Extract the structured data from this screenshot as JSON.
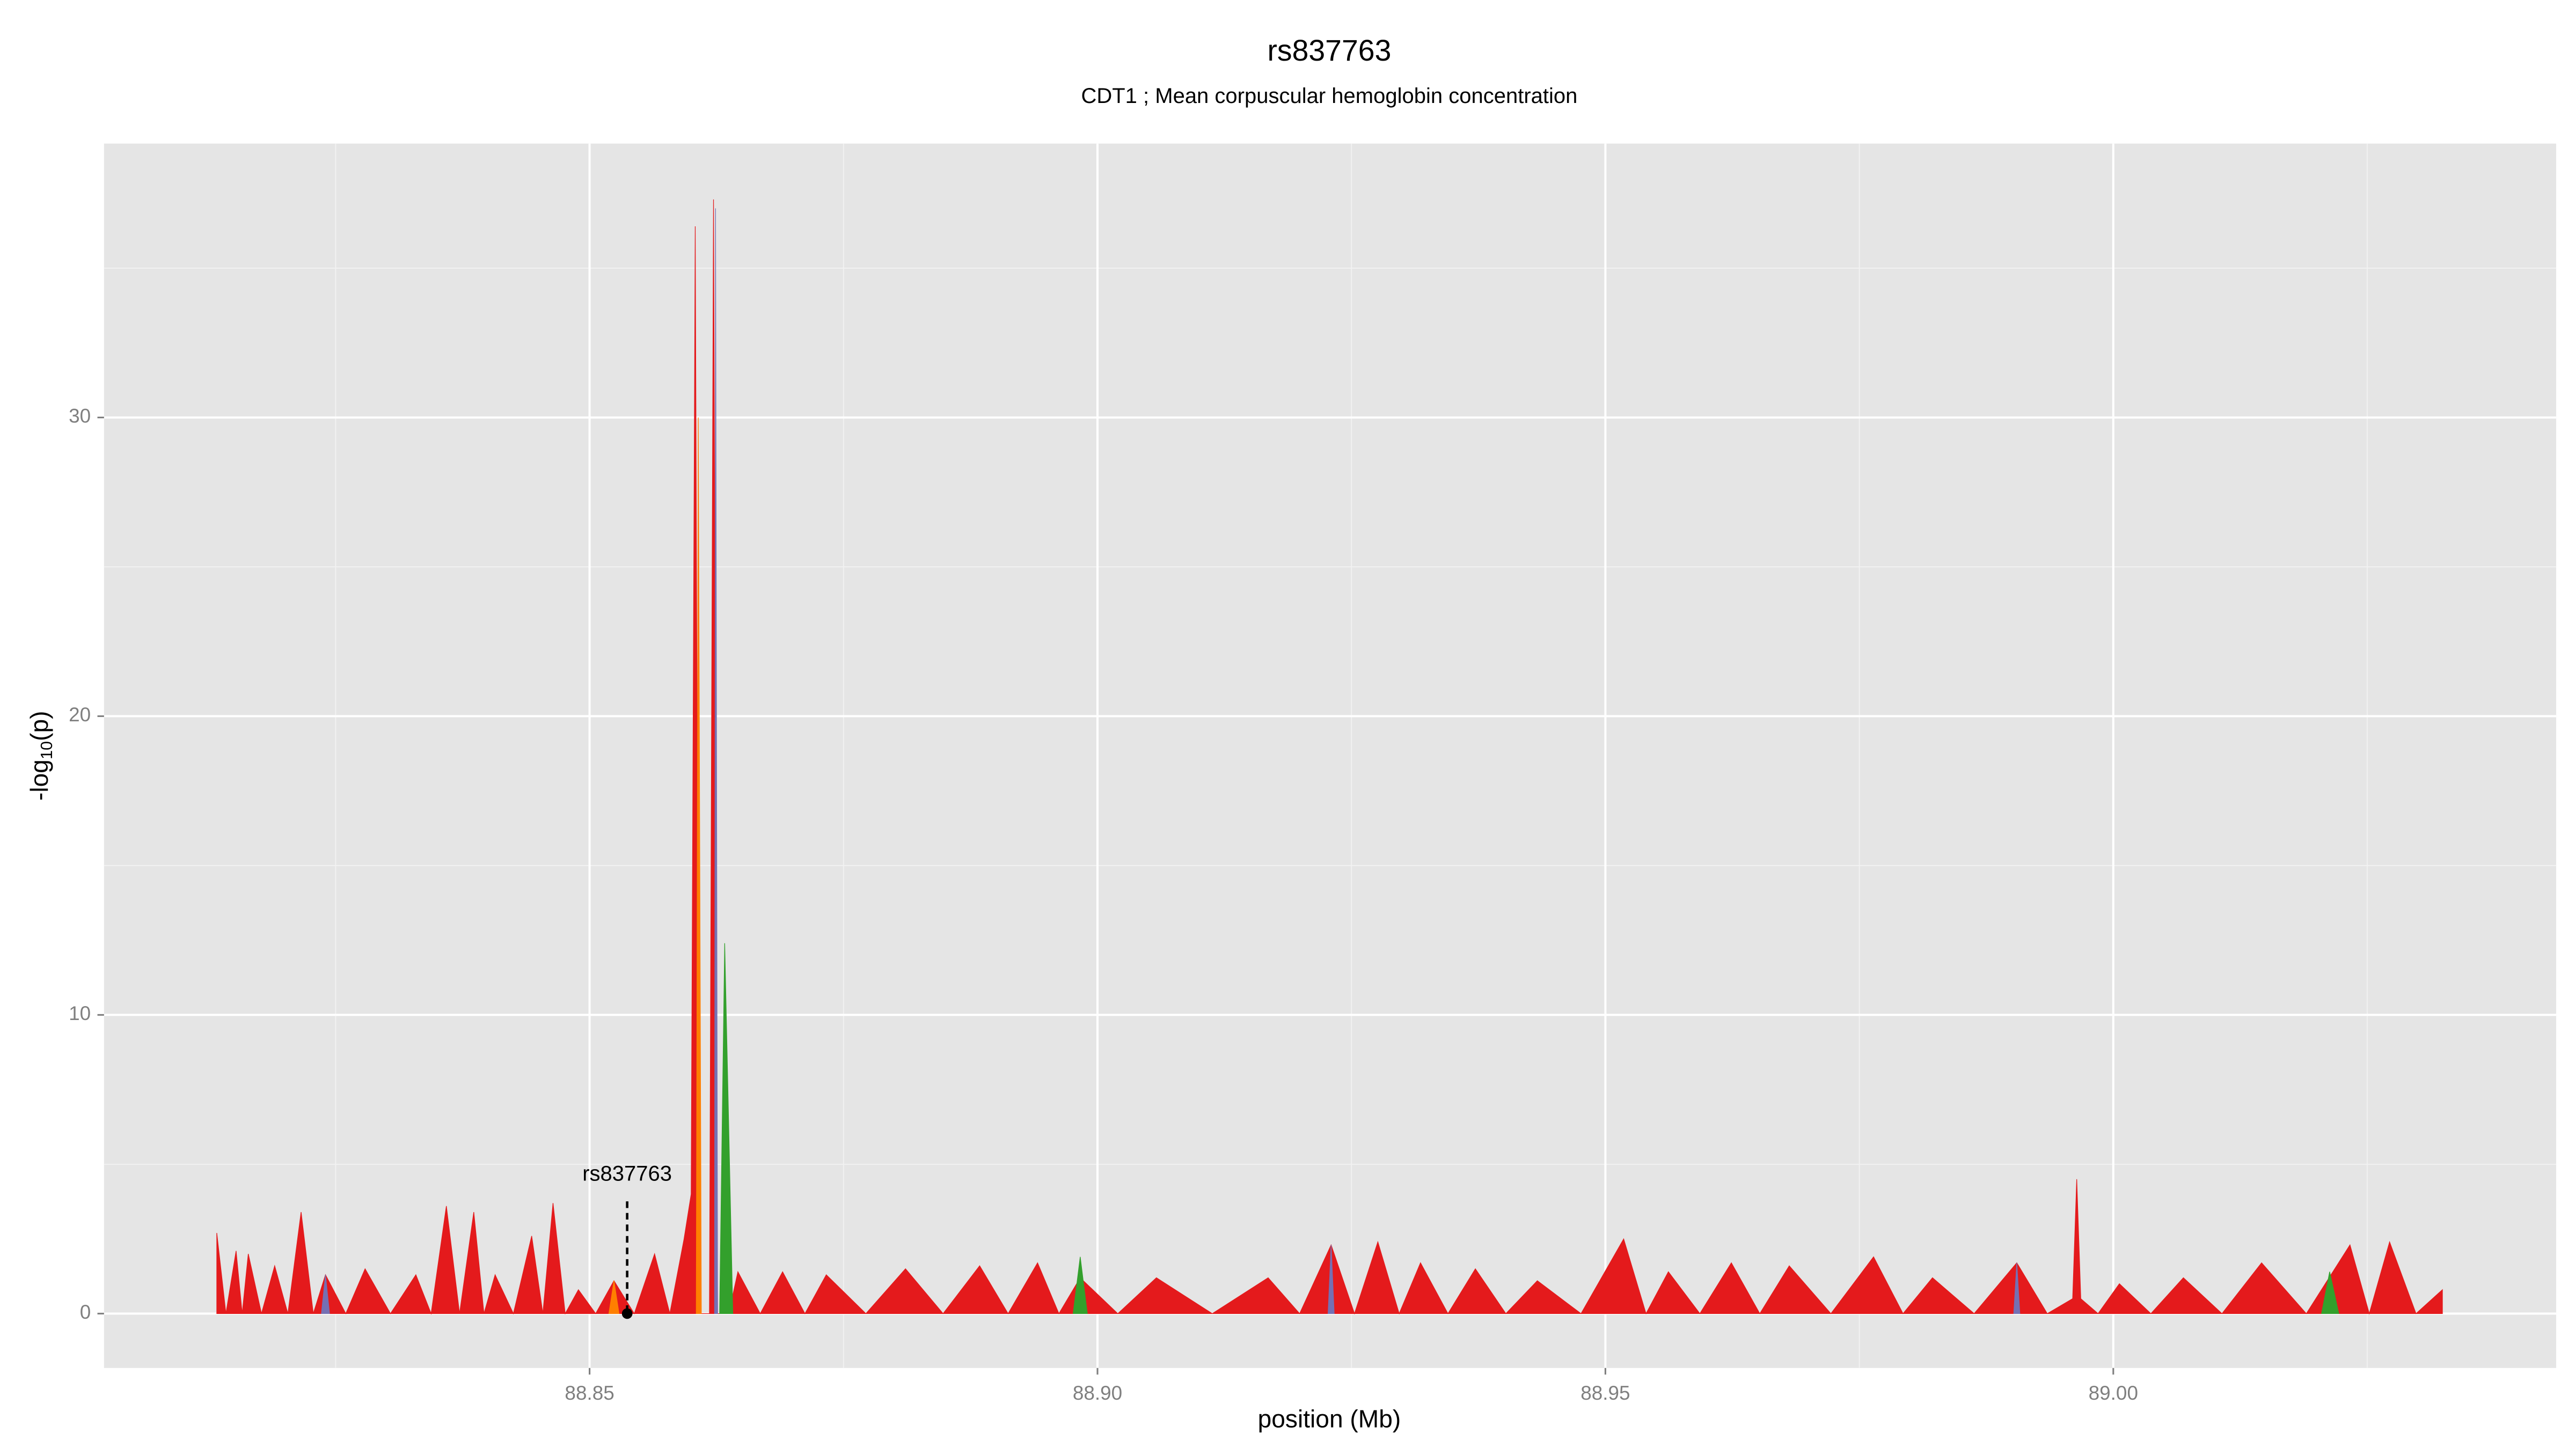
{
  "chart_data": {
    "type": "area",
    "title": "rs837763",
    "subtitle": "CDT1 ; Mean corpuscular hemoglobin concentration",
    "x_label": "position (Mb)",
    "y_label": {
      "prefix": "-log",
      "sub": "10",
      "suffix": "(p)"
    },
    "xlim": [
      88.8022,
      89.0436
    ],
    "ylim": [
      -1.82,
      39.17
    ],
    "xticks": [
      88.85,
      {
        "value": 88.9,
        "label": "88.90"
      },
      88.95,
      {
        "value": 89.0,
        "label": "89.00"
      }
    ],
    "yticks": [
      0,
      10,
      20,
      30
    ],
    "xminor": [
      88.825,
      88.875,
      88.925,
      88.975,
      89.025
    ],
    "yminor": [
      5,
      15,
      25,
      35
    ],
    "grid": true,
    "panel_color": "#e5e5e5",
    "series": [
      {
        "name": "red",
        "color": "#e41a1c",
        "x": [
          88.8133,
          88.8142,
          88.8152,
          88.8158,
          88.8164,
          88.8177,
          88.819,
          88.8203,
          88.8216,
          88.8228,
          88.824,
          88.826,
          88.8279,
          88.8304,
          88.8329,
          88.8344,
          88.8359,
          88.8372,
          88.8386,
          88.8396,
          88.8407,
          88.8425,
          88.8443,
          88.8454,
          88.8464,
          88.8476,
          88.8489,
          88.8506,
          88.8524,
          88.8544,
          88.8564,
          88.8579,
          88.8593,
          88.86,
          88.8604,
          88.8608,
          88.8618,
          88.8622,
          88.8626,
          88.8637,
          88.8646,
          88.8668,
          88.869,
          88.8712,
          88.8733,
          88.8772,
          88.8811,
          88.8848,
          88.8884,
          88.8912,
          88.8941,
          88.8962,
          88.8983,
          88.902,
          88.9058,
          88.9113,
          88.9168,
          88.9199,
          88.923,
          88.9253,
          88.9276,
          88.9297,
          88.9318,
          88.9345,
          88.9372,
          88.9402,
          88.9433,
          88.9476,
          88.9518,
          88.954,
          88.9562,
          88.9593,
          88.9624,
          88.9652,
          88.9681,
          88.9722,
          88.9764,
          88.9793,
          88.9822,
          88.9863,
          88.9905,
          88.9935,
          88.996,
          88.9964,
          88.9968,
          88.9985,
          89.0006,
          89.0037,
          89.0069,
          89.0107,
          89.0146,
          89.019,
          89.0233,
          89.0252,
          89.0272,
          89.0298,
          89.0324
        ],
        "values": [
          2.7,
          0,
          2.1,
          0,
          2.0,
          0,
          1.6,
          0,
          3.4,
          0,
          1.3,
          0,
          1.5,
          0,
          1.3,
          0,
          3.6,
          0,
          3.4,
          0,
          1.3,
          0,
          2.6,
          0,
          3.7,
          0,
          0.8,
          0,
          1.1,
          0,
          2.0,
          0,
          2.5,
          4,
          36.4,
          0,
          0,
          37.3,
          0,
          0,
          1.4,
          0,
          1.4,
          0,
          1.3,
          0,
          1.5,
          0,
          1.6,
          0,
          1.7,
          0,
          1.2,
          0,
          1.2,
          0,
          1.2,
          0,
          2.3,
          0,
          2.4,
          0,
          1.7,
          0,
          1.5,
          0,
          1.1,
          0,
          2.5,
          0,
          1.4,
          0,
          1.7,
          0,
          1.6,
          0,
          1.9,
          0,
          1.2,
          0,
          1.7,
          0,
          0.5,
          4.5,
          0.5,
          0,
          1.0,
          0,
          1.2,
          0,
          1.7,
          0,
          2.3,
          0,
          2.4,
          0,
          0.8
        ]
      },
      {
        "name": "orange",
        "color": "#ff7f00",
        "x": [
          88.8519,
          88.8524,
          88.8529,
          null,
          88.8605,
          88.8607,
          88.861
        ],
        "values": [
          0,
          1.1,
          0,
          null,
          0,
          30,
          0
        ]
      },
      {
        "name": "green",
        "color": "#33a02c",
        "x": [
          88.8628,
          88.8633,
          88.8641,
          null,
          88.8976,
          88.8983,
          88.899,
          null,
          89.0205,
          89.0213,
          89.0222
        ],
        "values": [
          0,
          12.4,
          0,
          null,
          0,
          1.9,
          0,
          null,
          0,
          1.4,
          0
        ]
      },
      {
        "name": "purple",
        "color": "#7570b3",
        "x": [
          88.8236,
          88.824,
          88.8244,
          null,
          88.8623,
          88.8624,
          88.8626,
          null,
          88.9227,
          88.923,
          88.9233,
          null,
          88.9902,
          88.9905,
          88.9908
        ],
        "values": [
          0,
          1.3,
          0,
          null,
          0,
          37,
          0,
          null,
          0,
          2.3,
          0,
          null,
          0,
          1.7,
          0
        ]
      }
    ],
    "annotation": {
      "label": "rs837763",
      "x": 88.8537,
      "y": 0
    }
  }
}
